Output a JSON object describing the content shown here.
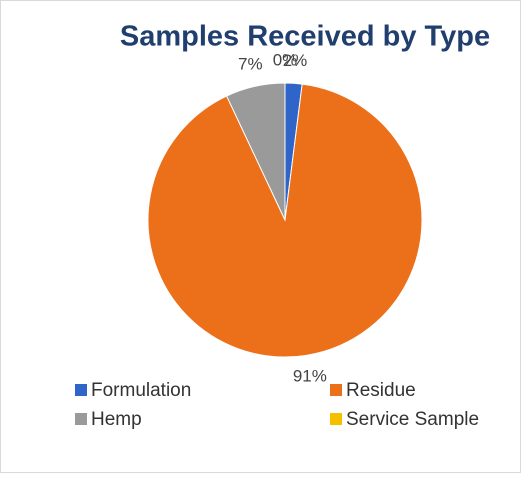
{
  "chart_data": {
    "type": "pie",
    "title": "Samples Received by Type",
    "categories": [
      "Formulation",
      "Residue",
      "Hemp",
      "Service Sample"
    ],
    "values": [
      2,
      91,
      7,
      0
    ],
    "value_labels": [
      "2%",
      "91%",
      "7%",
      "0%"
    ],
    "colors": [
      "#2f64c8",
      "#ec6f1a",
      "#9a9a9a",
      "#f5c000"
    ]
  }
}
